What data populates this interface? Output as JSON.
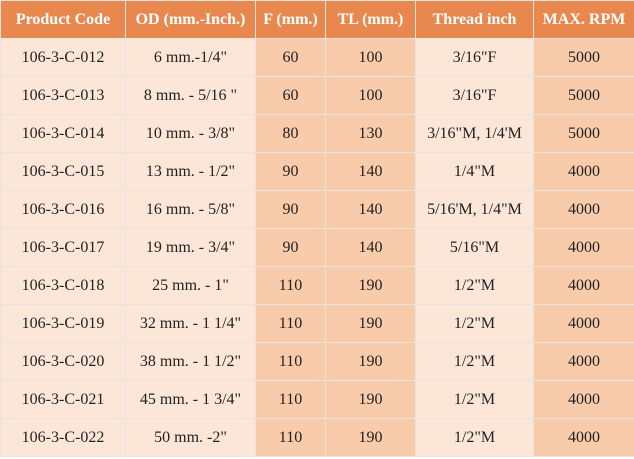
{
  "table": {
    "headers": [
      "Product Code",
      "OD (mm.-Inch.)",
      "F (mm.)",
      "TL (mm.)",
      "Thread inch",
      "MAX. RPM"
    ],
    "rows": [
      [
        "106-3-C-012",
        "6 mm.-1/4\"",
        "60",
        "100",
        "3/16\"F",
        "5000"
      ],
      [
        "106-3-C-013",
        "8 mm. - 5/16 \"",
        "60",
        "100",
        "3/16\"F",
        "5000"
      ],
      [
        "106-3-C-014",
        "10 mm. - 3/8\"",
        "80",
        "130",
        "3/16\"M, 1/4'M",
        "5000"
      ],
      [
        "106-3-C-015",
        "13 mm. - 1/2\"",
        "90",
        "140",
        "1/4\"M",
        "4000"
      ],
      [
        "106-3-C-016",
        "16 mm. - 5/8\"",
        "90",
        "140",
        "5/16'M, 1/4\"M",
        "4000"
      ],
      [
        "106-3-C-017",
        "19 mm. - 3/4\"",
        "90",
        "140",
        "5/16\"M",
        "4000"
      ],
      [
        "106-3-C-018",
        "25 mm. - 1\"",
        "110",
        "190",
        "1/2\"M",
        "4000"
      ],
      [
        "106-3-C-019",
        "32 mm. - 1 1/4\"",
        "110",
        "190",
        "1/2\"M",
        "4000"
      ],
      [
        "106-3-C-020",
        "38 mm. - 1 1/2\"",
        "110",
        "190",
        "1/2\"M",
        "4000"
      ],
      [
        "106-3-C-021",
        "45 mm. - 1 3/4\"",
        "110",
        "190",
        "1/2\"M",
        "4000"
      ],
      [
        "106-3-C-022",
        "50 mm. -2\"",
        "110",
        "190",
        "1/2\"M",
        "4000"
      ]
    ]
  }
}
